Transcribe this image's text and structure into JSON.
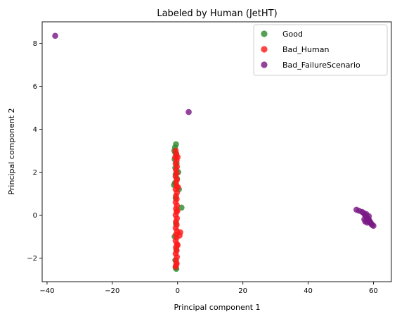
{
  "chart_data": {
    "type": "scatter",
    "title": "Labeled by Human (JetHT)",
    "xlabel": "Principal component 1",
    "ylabel": "Principal component 2",
    "xlim": [
      -41.5,
      65.5
    ],
    "ylim": [
      -3.1,
      9.0
    ],
    "xticks": [
      -40,
      -20,
      0,
      20,
      40,
      60
    ],
    "yticks": [
      -2,
      0,
      2,
      4,
      6,
      8
    ],
    "legend_position": "upper-right",
    "grid": false,
    "series": [
      {
        "name": "Good",
        "color": "#2e8b2e",
        "points": [
          [
            -0.5,
            3.3
          ],
          [
            -0.8,
            3.15
          ],
          [
            -1.0,
            3.0
          ],
          [
            -0.7,
            2.9
          ],
          [
            -0.4,
            2.8
          ],
          [
            -0.9,
            2.6
          ],
          [
            -0.3,
            2.4
          ],
          [
            -0.7,
            2.2
          ],
          [
            0.2,
            2.0
          ],
          [
            -0.6,
            1.9
          ],
          [
            -0.2,
            1.7
          ],
          [
            -0.8,
            1.5
          ],
          [
            -1.1,
            1.4
          ],
          [
            0.4,
            1.2
          ],
          [
            1.2,
            0.35
          ],
          [
            -0.6,
            0.8
          ],
          [
            -0.5,
            -0.4
          ],
          [
            -0.9,
            -1.0
          ],
          [
            -0.4,
            -1.6
          ],
          [
            -0.7,
            -2.1
          ],
          [
            -0.6,
            -2.45
          ],
          [
            -0.4,
            -2.5
          ]
        ]
      },
      {
        "name": "Bad_Human",
        "color": "#ff1a1a",
        "points": [
          [
            -0.6,
            3.0
          ],
          [
            -0.4,
            2.85
          ],
          [
            -0.7,
            2.7
          ],
          [
            -0.3,
            2.55
          ],
          [
            -0.6,
            2.4
          ],
          [
            -0.2,
            2.25
          ],
          [
            -0.5,
            2.1
          ],
          [
            -0.3,
            1.95
          ],
          [
            -0.6,
            1.8
          ],
          [
            -0.2,
            1.65
          ],
          [
            -0.5,
            1.5
          ],
          [
            -0.3,
            1.35
          ],
          [
            -0.6,
            1.2
          ],
          [
            -0.2,
            1.05
          ],
          [
            -0.5,
            0.9
          ],
          [
            -0.3,
            0.75
          ],
          [
            -0.6,
            0.6
          ],
          [
            -0.2,
            0.45
          ],
          [
            -0.5,
            0.3
          ],
          [
            -0.3,
            0.15
          ],
          [
            -0.6,
            0.0
          ],
          [
            -0.2,
            -0.15
          ],
          [
            -0.5,
            -0.3
          ],
          [
            -0.3,
            -0.45
          ],
          [
            -0.6,
            -0.6
          ],
          [
            0.8,
            -0.8
          ],
          [
            0.6,
            -0.95
          ],
          [
            -0.2,
            -0.75
          ],
          [
            -0.5,
            -0.9
          ],
          [
            -0.3,
            -1.05
          ],
          [
            -0.6,
            -1.2
          ],
          [
            -0.2,
            -1.35
          ],
          [
            -0.5,
            -1.5
          ],
          [
            -0.3,
            -1.65
          ],
          [
            -0.6,
            -1.8
          ],
          [
            -0.2,
            -1.95
          ],
          [
            -0.5,
            -2.1
          ],
          [
            -0.3,
            -2.25
          ],
          [
            -0.6,
            -2.4
          ],
          [
            -0.4,
            -2.3
          ],
          [
            0.0,
            2.7
          ],
          [
            0.1,
            1.3
          ],
          [
            -0.1,
            0.2
          ],
          [
            0.0,
            -1.4
          ]
        ]
      },
      {
        "name": "Bad_FailureScenario",
        "color": "#7a1a85",
        "points": [
          [
            -37.5,
            8.35
          ],
          [
            3.4,
            4.8
          ],
          [
            54.8,
            0.25
          ],
          [
            55.6,
            0.2
          ],
          [
            56.5,
            0.15
          ],
          [
            57.0,
            0.1
          ],
          [
            57.4,
            0.0
          ],
          [
            57.7,
            -0.05
          ],
          [
            57.9,
            -0.1
          ],
          [
            58.2,
            -0.15
          ],
          [
            58.5,
            -0.2
          ],
          [
            58.7,
            -0.25
          ],
          [
            58.9,
            -0.3
          ],
          [
            59.1,
            -0.35
          ],
          [
            59.3,
            -0.4
          ],
          [
            59.6,
            -0.45
          ],
          [
            60.0,
            -0.5
          ],
          [
            57.2,
            -0.2
          ],
          [
            57.8,
            0.05
          ],
          [
            58.6,
            -0.05
          ],
          [
            57.5,
            -0.3
          ],
          [
            58.1,
            -0.35
          ]
        ]
      }
    ]
  }
}
